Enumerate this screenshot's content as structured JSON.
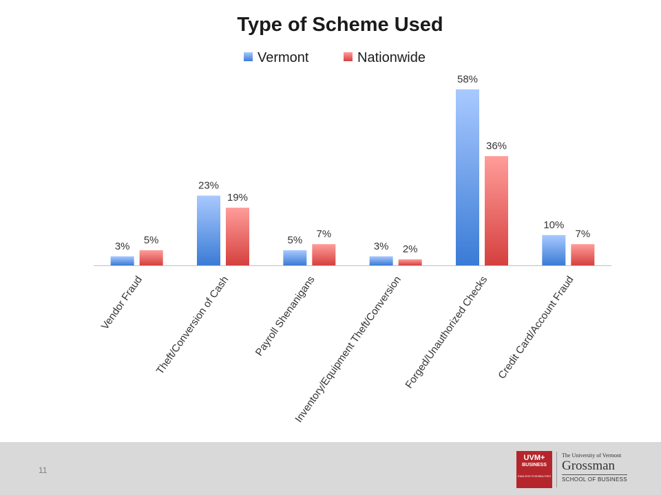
{
  "chart_data": {
    "type": "bar",
    "title": "Type of Scheme Used",
    "categories": [
      "Vendor Fraud",
      "Theft/Conversion of Cash",
      "Payroll Shenanigans",
      "Inventory/Equipment Theft/Conversion",
      "Forged/Unauthorized Checks",
      "Credit Card/Account Fraud"
    ],
    "series": [
      {
        "name": "Vermont",
        "values": [
          3,
          23,
          5,
          3,
          58,
          10
        ],
        "labels": [
          "3%",
          "23%",
          "5%",
          "3%",
          "58%",
          "10%"
        ],
        "color": "#4a86d8"
      },
      {
        "name": "Nationwide",
        "values": [
          5,
          19,
          7,
          2,
          36,
          7
        ],
        "labels": [
          "5%",
          "19%",
          "7%",
          "2%",
          "36%",
          "7%"
        ],
        "color": "#d9413f"
      }
    ],
    "ylim": [
      0,
      58
    ],
    "legend": "top-center",
    "grid": false
  },
  "footer": {
    "page_number": "11",
    "logo_left": {
      "line1": "UVM",
      "plus_icon": "plus-icon",
      "line2": "BUSINESS",
      "tagline": "ENDLESS POSSIBILITIES"
    },
    "logo_right": {
      "university": "The University of Vermont",
      "name": "Grossman",
      "school": "SCHOOL OF BUSINESS"
    }
  }
}
